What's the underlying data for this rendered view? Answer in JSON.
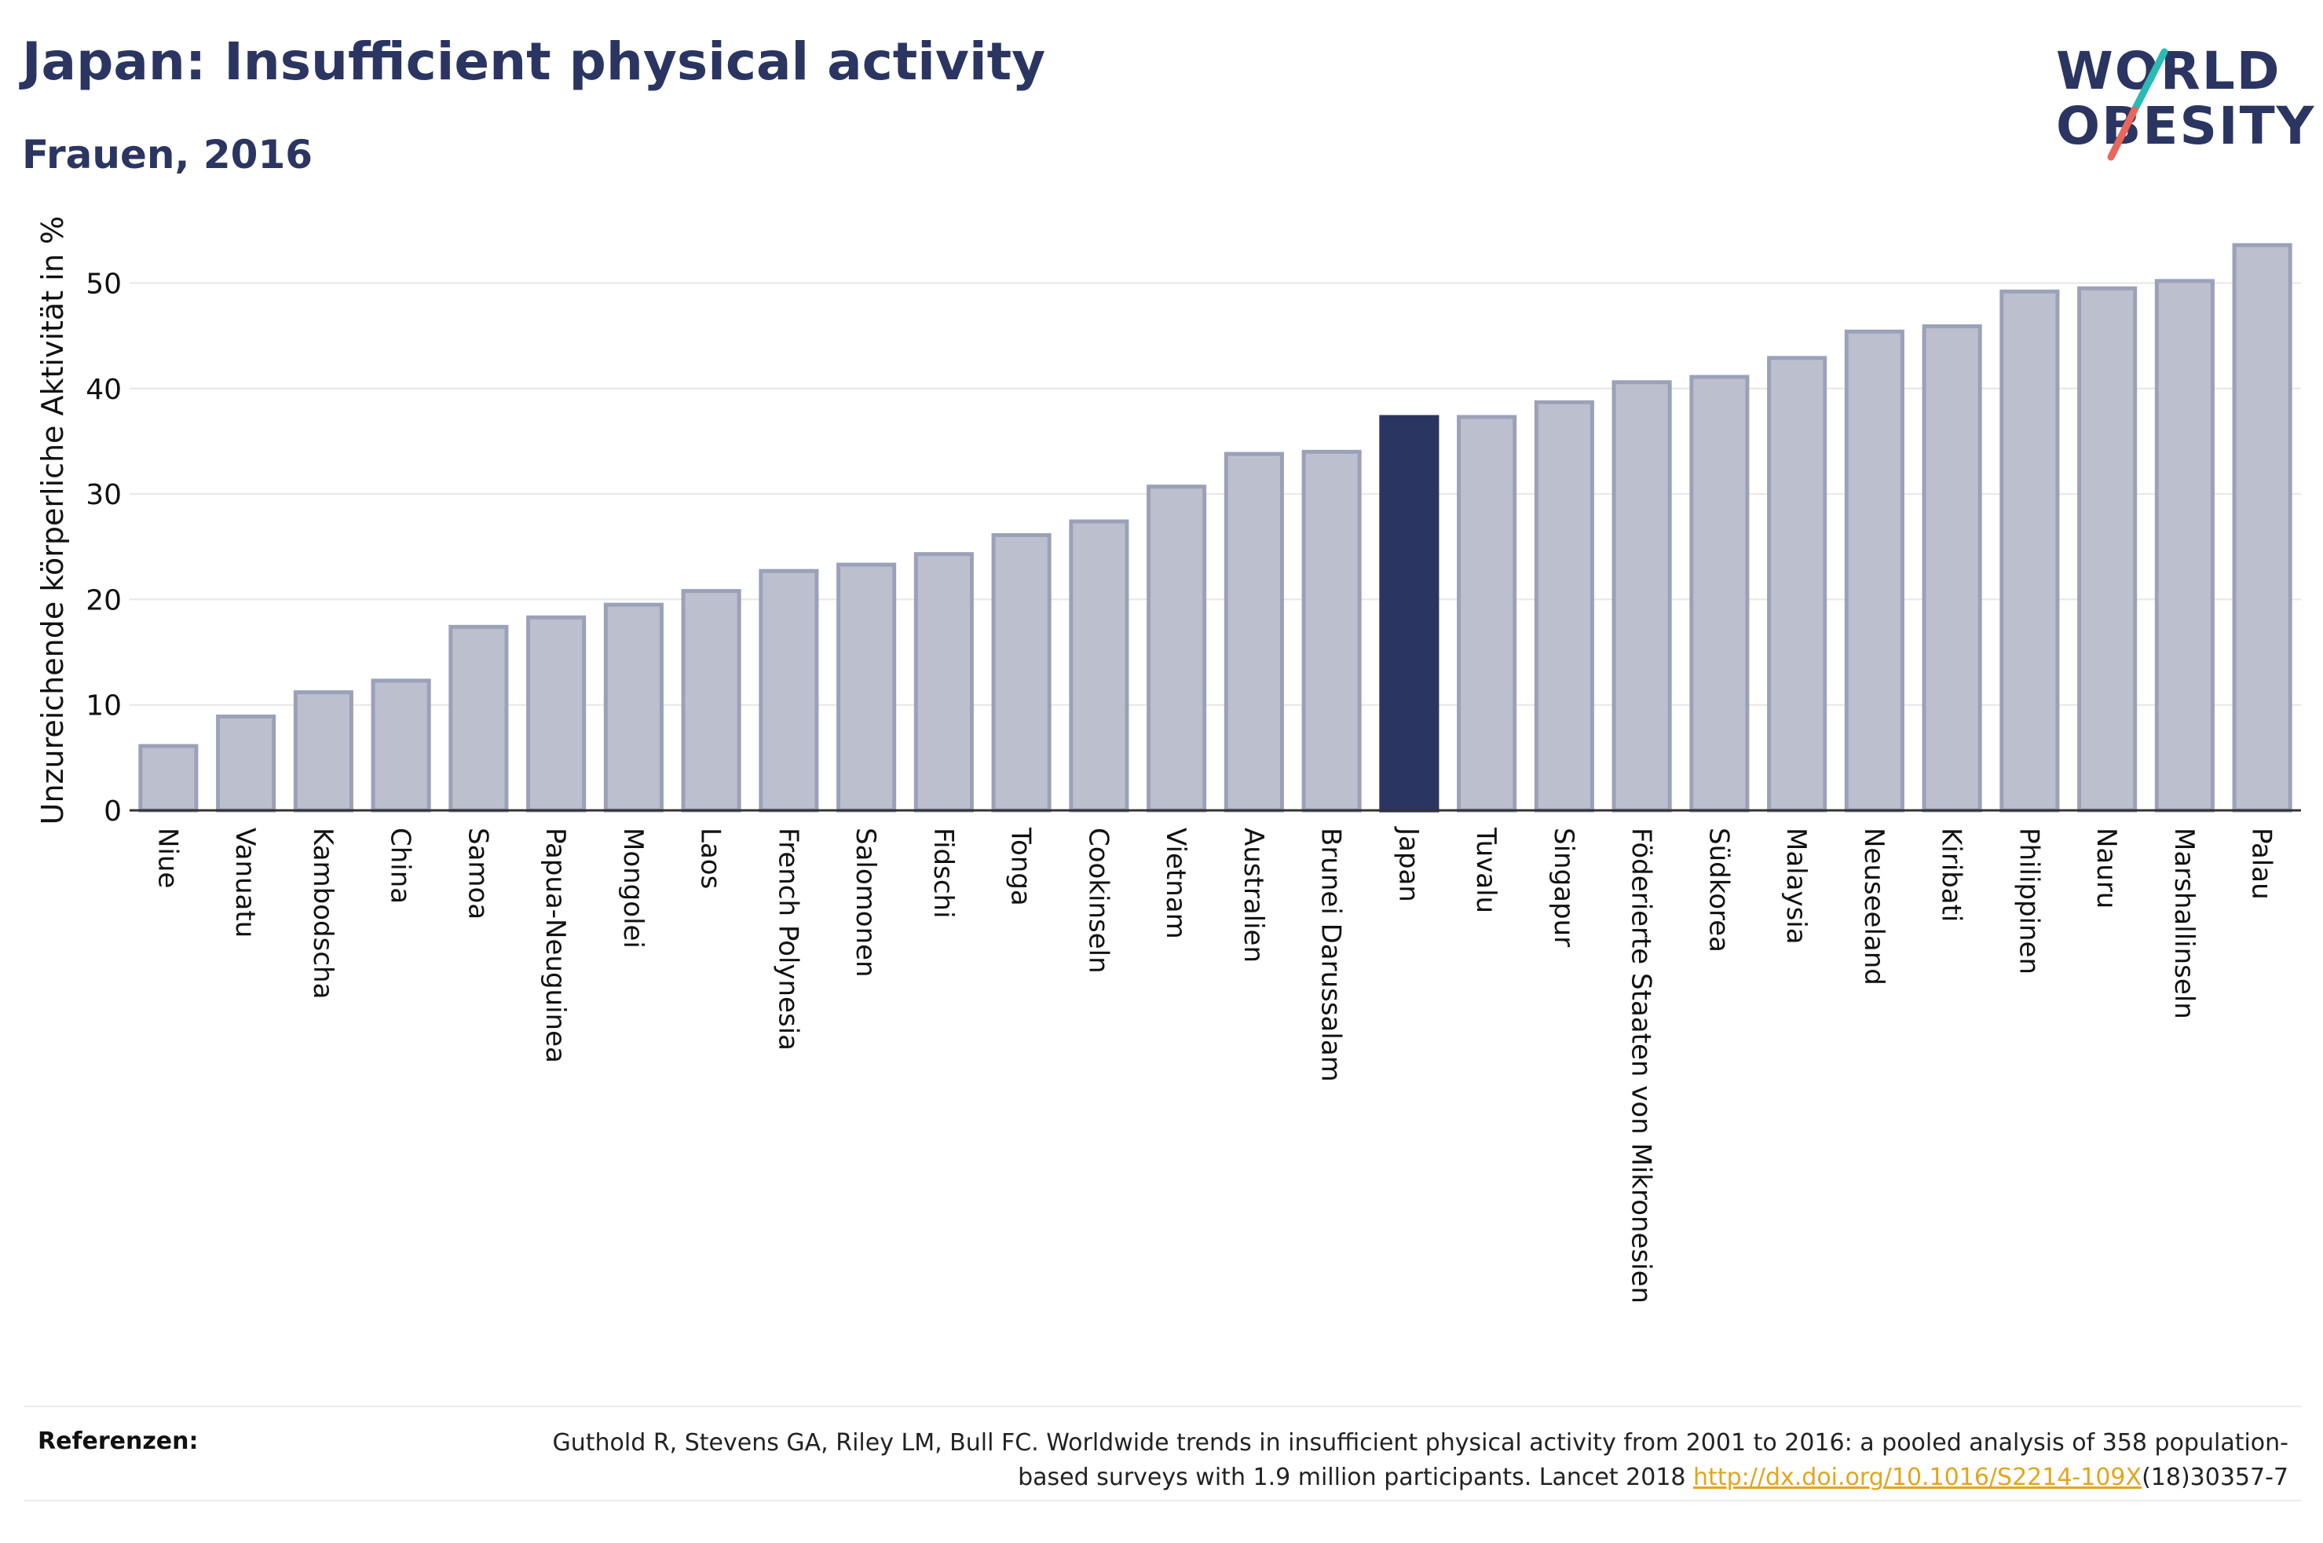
{
  "title": "Japan: Insufficient physical activity",
  "subtitle": "Frauen, 2016",
  "logo": {
    "line1": "WORLD",
    "line2": "OBESITY"
  },
  "colors": {
    "title": "#2b3561",
    "bar": "#bcc0ce",
    "bar_stroke": "#9ba1b8",
    "highlight": "#2b3561",
    "logo_slash_teal": "#2bbbb3",
    "logo_slash_red": "#e8665a",
    "link": "#e3a51c"
  },
  "chart_data": {
    "type": "bar",
    "ylabel": "Unzureichende körperliche Aktivität in %",
    "ylim": [
      0,
      55
    ],
    "yticks": [
      0,
      10,
      20,
      30,
      40,
      50
    ],
    "grid": true,
    "highlight": "Japan",
    "categories": [
      "Niue",
      "Vanuatu",
      "Kambodscha",
      "China",
      "Samoa",
      "Papua-Neuguinea",
      "Mongolei",
      "Laos",
      "French Polynesia",
      "Salomonen",
      "Fidschi",
      "Tonga",
      "Cookinseln",
      "Vietnam",
      "Australien",
      "Brunei Darussalam",
      "Japan",
      "Tuvalu",
      "Singapur",
      "Föderierte Staaten von Mikronesien",
      "Südkorea",
      "Malaysia",
      "Neuseeland",
      "Kiribati",
      "Philippinen",
      "Nauru",
      "Marshallinseln",
      "Palau"
    ],
    "values": [
      6.1,
      8.9,
      11.2,
      12.3,
      17.4,
      18.3,
      19.5,
      20.8,
      22.7,
      23.3,
      24.3,
      26.1,
      27.4,
      30.7,
      33.8,
      34.0,
      37.3,
      37.3,
      38.7,
      40.6,
      41.1,
      42.9,
      45.4,
      45.9,
      49.2,
      49.5,
      50.2,
      53.6
    ]
  },
  "references": {
    "label": "Referenzen:",
    "text_before": "Guthold R, Stevens GA, Riley LM, Bull FC. Worldwide trends in insufficient physical activity from 2001 to 2016: a pooled analysis of 358 population-based surveys with 1.9 million participants. Lancet 2018 ",
    "link": "http://dx.doi.org/10.1016/S2214-109X",
    "text_after": "(18)30357-7"
  }
}
